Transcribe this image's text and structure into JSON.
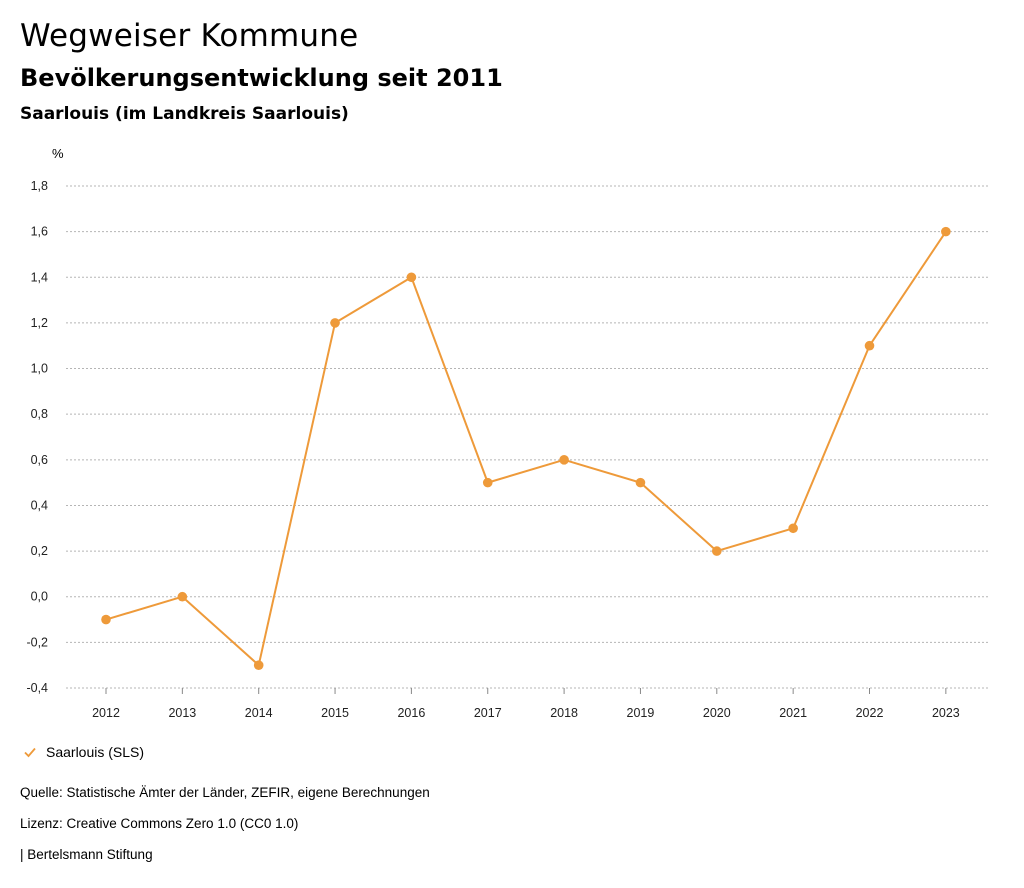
{
  "header": {
    "title": "Wegweiser Kommune",
    "subtitle": "Bevölkerungsentwicklung seit 2011",
    "region": "Saarlouis (im Landkreis Saarlouis)"
  },
  "chart_data": {
    "type": "line",
    "unit": "%",
    "categories": [
      "2012",
      "2013",
      "2014",
      "2015",
      "2016",
      "2017",
      "2018",
      "2019",
      "2020",
      "2021",
      "2022",
      "2023"
    ],
    "series": [
      {
        "name": "Saarlouis (SLS)",
        "color": "#ee9a3a",
        "values": [
          -0.1,
          0.0,
          -0.3,
          1.2,
          1.4,
          0.5,
          0.6,
          0.5,
          0.2,
          0.3,
          1.1,
          1.6
        ]
      }
    ],
    "yticks": [
      "1,8",
      "1,6",
      "1,4",
      "1,2",
      "1,0",
      "0,8",
      "0,6",
      "0,4",
      "0,2",
      "0,0",
      "-0,2",
      "-0,4"
    ],
    "ylim": [
      -0.4,
      1.8
    ],
    "grid": true,
    "legend_position": "bottom-left"
  },
  "legend": {
    "label": "Saarlouis (SLS)"
  },
  "footer": {
    "source": "Quelle: Statistische Ämter der Länder, ZEFIR, eigene Berechnungen",
    "license": "Lizenz: Creative Commons Zero 1.0 (CC0 1.0)",
    "brand": "| Bertelsmann Stiftung"
  }
}
